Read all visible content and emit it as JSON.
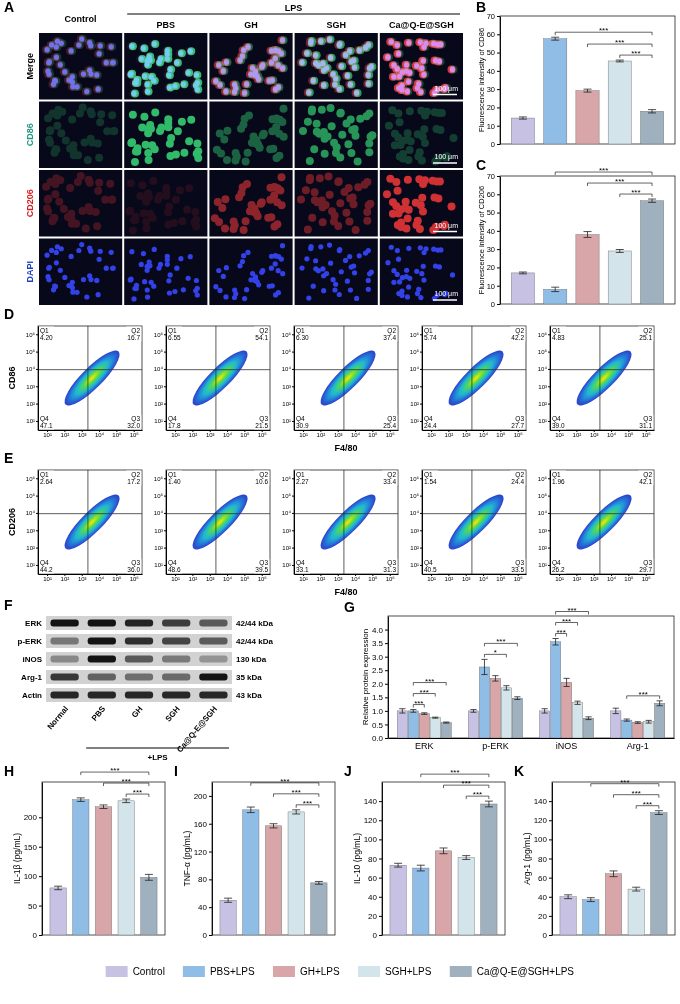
{
  "micrographs": {
    "letter": "A",
    "columns": [
      "Control"
    ],
    "group": {
      "label": "LPS",
      "columns": [
        "PBS",
        "GH",
        "SGH",
        "Ca@Q-E@SGH"
      ]
    },
    "rows": [
      "Merge",
      "CD86",
      "CD206",
      "DAPI"
    ],
    "scale_bar": "100 μm"
  },
  "chart_data": [
    {
      "type": "bar",
      "letter": "B",
      "ylabel": "Fluorescence intensity of CD86",
      "categories": [
        "Control",
        "PBS+LPS",
        "GH+LPS",
        "SGH+LPS",
        "Ca@Q-E@SGH+LPS"
      ],
      "colors": [
        "#c7c1e3",
        "#8fbde6",
        "#d8a6a8",
        "#d3e5ea",
        "#9fb0be"
      ],
      "values": [
        14.2,
        57.6,
        29.2,
        45.4,
        17.9
      ],
      "errors": [
        0.6,
        0.8,
        0.8,
        0.5,
        0.9
      ],
      "ylim": [
        0,
        70
      ],
      "yticks": [
        0,
        10,
        20,
        30,
        40,
        50,
        60,
        70
      ],
      "tick_labels": "y",
      "comparisons": [
        {
          "groups": [
            "SGH+LPS",
            "Ca@Q-E@SGH+LPS"
          ],
          "label": "***"
        },
        {
          "groups": [
            "GH+LPS",
            "Ca@Q-E@SGH+LPS"
          ],
          "label": "***"
        },
        {
          "groups": [
            "PBS+LPS",
            "Ca@Q-E@SGH+LPS"
          ],
          "label": "***"
        }
      ]
    },
    {
      "type": "bar",
      "letter": "C",
      "ylabel": "Fluorescence intensity of CD206",
      "categories": [
        "Control",
        "PBS+LPS",
        "GH+LPS",
        "SGH+LPS",
        "Ca@Q-E@SGH+LPS"
      ],
      "colors": [
        "#c7c1e3",
        "#8fbde6",
        "#d8a6a8",
        "#d3e5ea",
        "#9fb0be"
      ],
      "values": [
        17,
        8,
        38,
        29,
        56.5
      ],
      "errors": [
        0.5,
        1.2,
        1.6,
        0.8,
        0.9
      ],
      "ylim": [
        0,
        70
      ],
      "yticks": [
        0,
        10,
        20,
        30,
        40,
        50,
        60,
        70
      ],
      "tick_labels": "y",
      "comparisons": [
        {
          "groups": [
            "SGH+LPS",
            "Ca@Q-E@SGH+LPS"
          ],
          "label": "***"
        },
        {
          "groups": [
            "GH+LPS",
            "Ca@Q-E@SGH+LPS"
          ],
          "label": "***"
        },
        {
          "groups": [
            "PBS+LPS",
            "Ca@Q-E@SGH+LPS"
          ],
          "label": "***"
        }
      ]
    },
    {
      "type": "quadrant",
      "letter": "D",
      "xlabel": "F4/80",
      "ylabel": "CD86",
      "log": true,
      "xlim": [
        3,
        3000000
      ],
      "ylim": [
        3,
        3000000
      ],
      "xticks": [
        {
          "value": 10,
          "label": "10¹"
        },
        {
          "value": 100,
          "label": "10²"
        },
        {
          "value": 1000,
          "label": "10³"
        },
        {
          "value": 10000,
          "label": "10⁴"
        },
        {
          "value": 100000,
          "label": "10⁵"
        },
        {
          "value": 1000000,
          "label": "10⁶"
        }
      ],
      "yticks": [
        {
          "value": 10,
          "label": "10¹"
        },
        {
          "value": 100,
          "label": "10²"
        },
        {
          "value": 1000,
          "label": "10³"
        },
        {
          "value": 10000,
          "label": "10⁴"
        },
        {
          "value": 100000,
          "label": "10⁵"
        },
        {
          "value": 1000000,
          "label": "10⁶"
        }
      ],
      "quadrants": [
        "Q1",
        "Q2",
        "Q3",
        "Q4"
      ],
      "values": [
        [
          4.2,
          16.7,
          32.0,
          47.1
        ],
        [
          6.55,
          54.1,
          21.5,
          17.8
        ],
        [
          6.3,
          37.4,
          25.4,
          30.9
        ],
        [
          5.74,
          42.2,
          27.7,
          24.4
        ],
        [
          4.83,
          25.1,
          31.1,
          39.0
        ]
      ],
      "value_labels": [
        [
          "4.20",
          "16.7",
          "32.0",
          "47.1"
        ],
        [
          "6.55",
          "54.1",
          "21.5",
          "17.8"
        ],
        [
          "6.30",
          "37.4",
          "25.4",
          "30.9"
        ],
        [
          "5.74",
          "42.2",
          "27.7",
          "24.4"
        ],
        [
          "4.83",
          "25.1",
          "31.1",
          "39.0"
        ]
      ]
    },
    {
      "type": "quadrant",
      "letter": "E",
      "xlabel": "F4/80",
      "ylabel": "CD206",
      "log": true,
      "xlim": [
        3,
        3000000
      ],
      "ylim": [
        3,
        3000000
      ],
      "xticks": [
        {
          "value": 10,
          "label": "10¹"
        },
        {
          "value": 100,
          "label": "10²"
        },
        {
          "value": 1000,
          "label": "10³"
        },
        {
          "value": 10000,
          "label": "10⁴"
        },
        {
          "value": 100000,
          "label": "10⁵"
        },
        {
          "value": 1000000,
          "label": "10⁶"
        }
      ],
      "yticks": [
        {
          "value": 10,
          "label": "10¹"
        },
        {
          "value": 100,
          "label": "10²"
        },
        {
          "value": 1000,
          "label": "10³"
        },
        {
          "value": 10000,
          "label": "10⁴"
        },
        {
          "value": 100000,
          "label": "10⁵"
        },
        {
          "value": 1000000,
          "label": "10⁶"
        }
      ],
      "quadrants": [
        "Q1",
        "Q2",
        "Q3",
        "Q4"
      ],
      "values": [
        [
          2.64,
          17.2,
          36.0,
          44.2
        ],
        [
          1.4,
          10.6,
          39.5,
          48.6
        ],
        [
          2.27,
          33.4,
          31.3,
          33.1
        ],
        [
          1.54,
          24.4,
          33.5,
          40.5
        ],
        [
          1.96,
          42.1,
          29.7,
          26.2
        ]
      ],
      "value_labels": [
        [
          "2.64",
          "17.2",
          "36.0",
          "44.2"
        ],
        [
          "1.40",
          "10.6",
          "39.5",
          "48.6"
        ],
        [
          "2.27",
          "33.4",
          "31.3",
          "33.1"
        ],
        [
          "1.54",
          "24.4",
          "33.5",
          "40.5"
        ],
        [
          "1.96",
          "42.1",
          "29.7",
          "26.2"
        ]
      ]
    },
    {
      "type": "bar",
      "letter": "G",
      "ylabel": "Relative protein expression",
      "categories": [
        "ERK",
        "p-ERK",
        "iNOS",
        "Arg-1"
      ],
      "series": [
        {
          "name": "Control",
          "color": "#c7c1e3",
          "values": [
            1.0,
            1.0,
            1.0,
            1.0
          ],
          "errors": [
            0.08,
            0.05,
            0.08,
            0.1
          ]
        },
        {
          "name": "PBS+LPS",
          "color": "#8fbde6",
          "values": [
            1.0,
            2.62,
            3.55,
            0.66
          ],
          "errors": [
            0.05,
            0.28,
            0.12,
            0.04
          ]
        },
        {
          "name": "GH+LPS",
          "color": "#d8a6a8",
          "values": [
            0.9,
            2.2,
            2.05,
            0.57
          ],
          "errors": [
            0.03,
            0.1,
            0.15,
            0.03
          ]
        },
        {
          "name": "SGH+LPS",
          "color": "#d3e5ea",
          "values": [
            0.75,
            1.85,
            1.3,
            0.6
          ],
          "errors": [
            0.02,
            0.08,
            0.06,
            0.05
          ]
        },
        {
          "name": "Ca@Q-E@SGH+LPS",
          "color": "#9fb0be",
          "values": [
            0.57,
            1.47,
            0.73,
            1.28
          ],
          "errors": [
            0.02,
            0.05,
            0.05,
            0.09
          ]
        }
      ],
      "ylim": [
        0,
        4.5
      ],
      "yticks": [
        {
          "value": 0,
          "label": "0.0"
        },
        {
          "value": 0.5,
          "label": "0.5"
        },
        {
          "value": 1,
          "label": "1.0"
        },
        {
          "value": 1.5,
          "label": "1.5"
        },
        {
          "value": 2,
          "label": "2.0"
        },
        {
          "value": 2.5,
          "label": "2.5"
        },
        {
          "value": 3,
          "label": "3.0"
        },
        {
          "value": 3.5,
          "label": "3.5"
        },
        {
          "value": 4,
          "label": "4.0"
        }
      ],
      "comparisons": [
        {
          "category": "ERK",
          "groups": [
            "PBS+LPS",
            "GH+LPS"
          ],
          "label": "***"
        },
        {
          "category": "ERK",
          "groups": [
            "PBS+LPS",
            "SGH+LPS"
          ],
          "label": "***"
        },
        {
          "category": "ERK",
          "groups": [
            "PBS+LPS",
            "Ca@Q-E@SGH+LPS"
          ],
          "label": "***"
        },
        {
          "category": "p-ERK",
          "groups": [
            "PBS+LPS",
            "SGH+LPS"
          ],
          "label": "*"
        },
        {
          "category": "p-ERK",
          "groups": [
            "PBS+LPS",
            "Ca@Q-E@SGH+LPS"
          ],
          "label": "***"
        },
        {
          "category": "iNOS",
          "groups": [
            "PBS+LPS",
            "GH+LPS"
          ],
          "label": "***"
        },
        {
          "category": "iNOS",
          "groups": [
            "PBS+LPS",
            "SGH+LPS"
          ],
          "label": "***"
        },
        {
          "category": "iNOS",
          "groups": [
            "PBS+LPS",
            "Ca@Q-E@SGH+LPS"
          ],
          "label": "***"
        },
        {
          "category": "Arg-1",
          "groups": [
            "PBS+LPS",
            "Ca@Q-E@SGH+LPS"
          ],
          "label": "***"
        }
      ]
    },
    {
      "type": "bar",
      "letter": "H",
      "ylabel": "IL-1β (pg/mL)",
      "categories": [
        "Control",
        "PBS+LPS",
        "GH+LPS",
        "SGH+LPS",
        "Ca@Q-E@SGH+LPS"
      ],
      "colors": [
        "#c7c1e3",
        "#8fbde6",
        "#d8a6a8",
        "#d3e5ea",
        "#9fb0be"
      ],
      "values": [
        80,
        230,
        218,
        228,
        98
      ],
      "errors": [
        3,
        3,
        3,
        3,
        5
      ],
      "ylim": [
        0,
        260
      ],
      "yticks": [
        0,
        50,
        100,
        150,
        200
      ],
      "tick_labels": "y",
      "comparisons": [
        {
          "groups": [
            "SGH+LPS",
            "Ca@Q-E@SGH+LPS"
          ],
          "label": "***"
        },
        {
          "groups": [
            "GH+LPS",
            "Ca@Q-E@SGH+LPS"
          ],
          "label": "***"
        },
        {
          "groups": [
            "PBS+LPS",
            "Ca@Q-E@SGH+LPS"
          ],
          "label": "***"
        }
      ]
    },
    {
      "type": "bar",
      "letter": "I",
      "ylabel": "TNF-α (pg/mL)",
      "categories": [
        "Control",
        "PBS+LPS",
        "GH+LPS",
        "SGH+LPS",
        "Ca@Q-E@SGH+LPS"
      ],
      "colors": [
        "#c7c1e3",
        "#8fbde6",
        "#d8a6a8",
        "#d3e5ea",
        "#9fb0be"
      ],
      "values": [
        50,
        180,
        157,
        177,
        75
      ],
      "errors": [
        3,
        4,
        3,
        3,
        2
      ],
      "ylim": [
        0,
        220
      ],
      "yticks": [
        0,
        40,
        80,
        120,
        160,
        200
      ],
      "tick_labels": "y",
      "comparisons": [
        {
          "groups": [
            "SGH+LPS",
            "Ca@Q-E@SGH+LPS"
          ],
          "label": "***"
        },
        {
          "groups": [
            "GH+LPS",
            "Ca@Q-E@SGH+LPS"
          ],
          "label": "***"
        },
        {
          "groups": [
            "PBS+LPS",
            "Ca@Q-E@SGH+LPS"
          ],
          "label": "***"
        }
      ]
    },
    {
      "type": "bar",
      "letter": "J",
      "ylabel": "IL-10 (pg/mL)",
      "categories": [
        "Control",
        "PBS+LPS",
        "GH+LPS",
        "SGH+LPS",
        "Ca@Q-E@SGH+LPS"
      ],
      "colors": [
        "#c7c1e3",
        "#8fbde6",
        "#d8a6a8",
        "#d3e5ea",
        "#9fb0be"
      ],
      "values": [
        73,
        70,
        88,
        81,
        137
      ],
      "errors": [
        2,
        3,
        3,
        2,
        3
      ],
      "ylim": [
        0,
        160
      ],
      "yticks": [
        0,
        20,
        40,
        60,
        80,
        100,
        120,
        140
      ],
      "tick_labels": "y",
      "comparisons": [
        {
          "groups": [
            "SGH+LPS",
            "Ca@Q-E@SGH+LPS"
          ],
          "label": "***"
        },
        {
          "groups": [
            "GH+LPS",
            "Ca@Q-E@SGH+LPS"
          ],
          "label": "***"
        },
        {
          "groups": [
            "PBS+LPS",
            "Ca@Q-E@SGH+LPS"
          ],
          "label": "***"
        }
      ]
    },
    {
      "type": "bar",
      "letter": "K",
      "ylabel": "Arg-1 (pg/mL)",
      "categories": [
        "Control",
        "PBS+LPS",
        "GH+LPS",
        "SGH+LPS",
        "Ca@Q-E@SGH+LPS"
      ],
      "colors": [
        "#c7c1e3",
        "#8fbde6",
        "#d8a6a8",
        "#d3e5ea",
        "#9fb0be"
      ],
      "values": [
        40,
        37,
        64,
        48,
        128
      ],
      "errors": [
        2,
        2,
        3,
        2,
        2
      ],
      "ylim": [
        0,
        160
      ],
      "yticks": [
        0,
        20,
        40,
        60,
        80,
        100,
        120,
        140
      ],
      "tick_labels": "y",
      "comparisons": [
        {
          "groups": [
            "SGH+LPS",
            "Ca@Q-E@SGH+LPS"
          ],
          "label": "***"
        },
        {
          "groups": [
            "GH+LPS",
            "Ca@Q-E@SGH+LPS"
          ],
          "label": "***"
        },
        {
          "groups": [
            "PBS+LPS",
            "Ca@Q-E@SGH+LPS"
          ],
          "label": "***"
        }
      ]
    }
  ],
  "blot": {
    "letter": "F",
    "proteins": [
      {
        "name": "ERK",
        "size": "42/44 kDa"
      },
      {
        "name": "p-ERK",
        "size": "42/44 kDa"
      },
      {
        "name": "iNOS",
        "size": "130 kDa"
      },
      {
        "name": "Arg-1",
        "size": "35 kDa"
      },
      {
        "name": "Actin",
        "size": "43 kDa"
      }
    ],
    "lanes": [
      "Normal"
    ],
    "treatment": {
      "label": "+LPS",
      "lanes": [
        "PBS",
        "GH",
        "SGH",
        "Ca@Q-E@SGH"
      ]
    }
  },
  "shared_legend": {
    "entries": [
      "Control",
      "PBS+LPS",
      "GH+LPS",
      "SGH+LPS",
      "Ca@Q-E@SGH+LPS"
    ],
    "colors": [
      "#c7c1e3",
      "#8fbde6",
      "#d8a6a8",
      "#d3e5ea",
      "#9fb0be"
    ]
  }
}
